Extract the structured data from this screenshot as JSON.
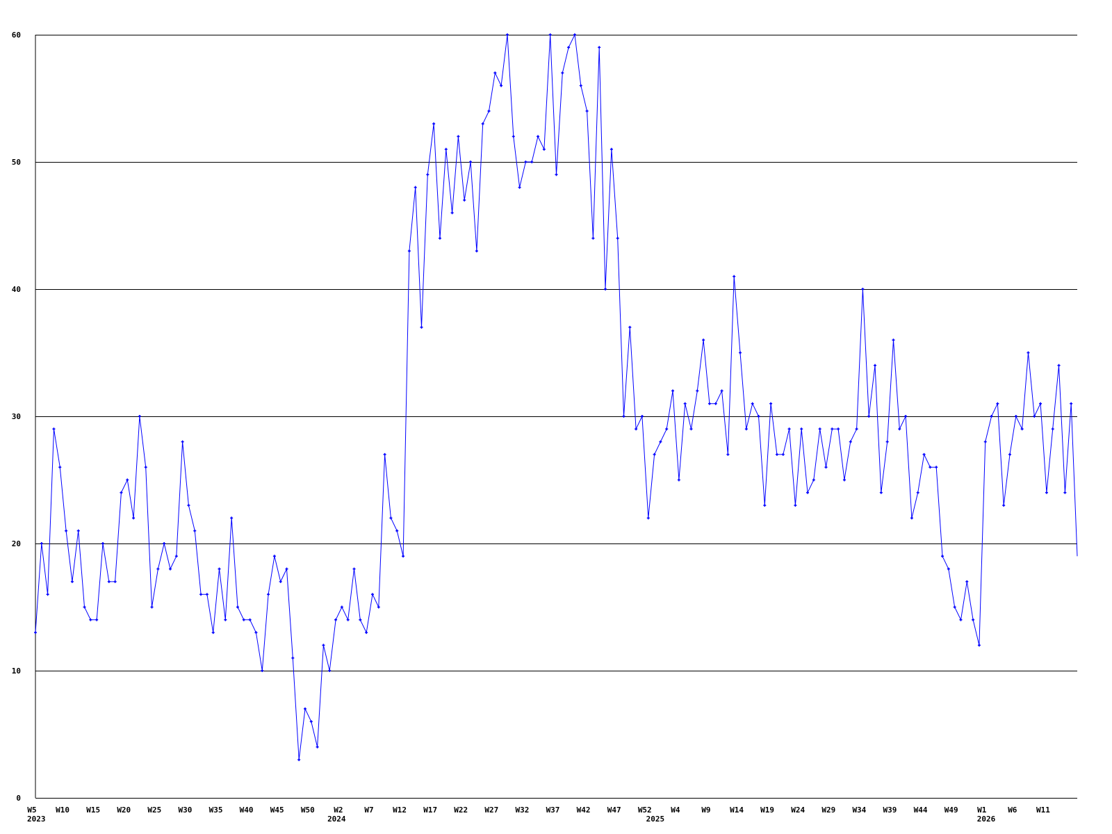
{
  "chart_data": {
    "type": "line",
    "title": "",
    "xlabel": "",
    "ylabel": "",
    "ylim": [
      0,
      60
    ],
    "yticks": [
      0,
      10,
      20,
      30,
      40,
      50,
      60
    ],
    "grid": "horizontal",
    "line_color": "#0000ff",
    "grid_color": "#000000",
    "x_start": "2023 W5",
    "x_step": "1 week",
    "xtick_labels": [
      {
        "index": 0,
        "label": "W5"
      },
      {
        "index": 5,
        "label": "W10"
      },
      {
        "index": 10,
        "label": "W15"
      },
      {
        "index": 15,
        "label": "W20"
      },
      {
        "index": 20,
        "label": "W25"
      },
      {
        "index": 25,
        "label": "W30"
      },
      {
        "index": 30,
        "label": "W35"
      },
      {
        "index": 35,
        "label": "W40"
      },
      {
        "index": 40,
        "label": "W45"
      },
      {
        "index": 45,
        "label": "W50"
      },
      {
        "index": 50,
        "label": "W2"
      },
      {
        "index": 55,
        "label": "W7"
      },
      {
        "index": 60,
        "label": "W12"
      },
      {
        "index": 65,
        "label": "W17"
      },
      {
        "index": 70,
        "label": "W22"
      },
      {
        "index": 75,
        "label": "W27"
      },
      {
        "index": 80,
        "label": "W32"
      },
      {
        "index": 85,
        "label": "W37"
      },
      {
        "index": 90,
        "label": "W42"
      },
      {
        "index": 95,
        "label": "W47"
      },
      {
        "index": 100,
        "label": "W52"
      },
      {
        "index": 105,
        "label": "W4"
      },
      {
        "index": 110,
        "label": "W9"
      },
      {
        "index": 115,
        "label": "W14"
      },
      {
        "index": 120,
        "label": "W19"
      },
      {
        "index": 125,
        "label": "W24"
      },
      {
        "index": 130,
        "label": "W29"
      },
      {
        "index": 135,
        "label": "W34"
      },
      {
        "index": 140,
        "label": "W39"
      },
      {
        "index": 145,
        "label": "W44"
      },
      {
        "index": 150,
        "label": "W49"
      },
      {
        "index": 155,
        "label": "W1"
      },
      {
        "index": 160,
        "label": "W6"
      },
      {
        "index": 165,
        "label": "W11"
      }
    ],
    "year_labels": [
      {
        "index": 0,
        "label": "2023"
      },
      {
        "index": 49,
        "label": "2024"
      },
      {
        "index": 101,
        "label": "2025"
      },
      {
        "index": 155,
        "label": "2026"
      }
    ],
    "values": [
      13,
      20,
      16,
      29,
      26,
      21,
      17,
      21,
      15,
      14,
      14,
      20,
      17,
      17,
      24,
      25,
      22,
      30,
      26,
      15,
      18,
      20,
      18,
      19,
      28,
      23,
      21,
      16,
      16,
      13,
      18,
      14,
      22,
      15,
      14,
      14,
      13,
      10,
      16,
      19,
      17,
      18,
      11,
      3,
      7,
      6,
      4,
      12,
      10,
      14,
      15,
      14,
      18,
      14,
      13,
      16,
      15,
      27,
      22,
      21,
      19,
      43,
      48,
      37,
      49,
      53,
      44,
      51,
      46,
      52,
      47,
      50,
      43,
      53,
      54,
      57,
      56,
      60,
      52,
      48,
      50,
      50,
      52,
      51,
      60,
      49,
      57,
      59,
      60,
      56,
      54,
      44,
      59,
      40,
      51,
      44,
      30,
      37,
      29,
      30,
      22,
      27,
      28,
      29,
      32,
      25,
      31,
      29,
      32,
      36,
      31,
      31,
      32,
      27,
      41,
      35,
      29,
      31,
      30,
      23,
      31,
      27,
      27,
      29,
      23,
      29,
      24,
      25,
      29,
      26,
      29,
      29,
      25,
      28,
      29,
      40,
      30,
      34,
      24,
      28,
      36,
      29,
      30,
      22,
      24,
      27,
      26,
      26,
      19,
      18,
      15,
      14,
      17,
      14,
      12,
      28,
      30,
      31,
      23,
      27,
      30,
      29,
      35,
      30,
      31,
      24,
      29,
      34,
      24,
      31,
      19
    ]
  }
}
